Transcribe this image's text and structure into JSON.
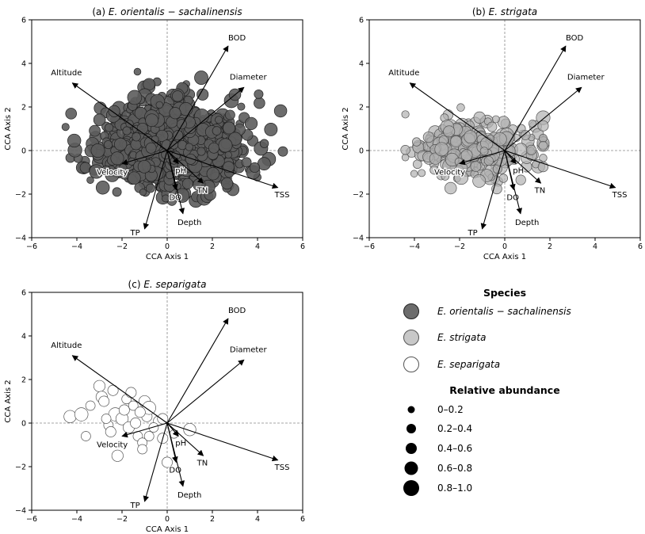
{
  "chart_data": [
    {
      "type": "scatter",
      "title_prefix": "(a) ",
      "title_species": "E. orientalis − sachalinensis",
      "xlabel": "CCA Axis 1",
      "ylabel": "CCA Axis 2",
      "xlim": [
        -6,
        6
      ],
      "ylim": [
        -4,
        6
      ],
      "xticks": [
        -6,
        -4,
        -2,
        0,
        2,
        4,
        6
      ],
      "yticks": [
        -4,
        -2,
        0,
        2,
        4,
        6
      ],
      "series_ref": 0,
      "point_count": 1100,
      "spread_x": [
        -4.5,
        5.5
      ],
      "spread_y": [
        -2.6,
        3.8
      ]
    },
    {
      "type": "scatter",
      "title_prefix": "(b) ",
      "title_species": "E. strigata",
      "xlabel": "CCA Axis 1",
      "ylabel": "CCA Axis 2",
      "xlim": [
        -6,
        6
      ],
      "ylim": [
        -4,
        6
      ],
      "xticks": [
        -6,
        -4,
        -2,
        0,
        2,
        4,
        6
      ],
      "yticks": [
        -4,
        -2,
        0,
        2,
        4,
        6
      ],
      "series_ref": 1,
      "point_count": 300,
      "spread_x": [
        -4.4,
        1.7
      ],
      "spread_y": [
        -2.1,
        2.3
      ]
    },
    {
      "type": "scatter",
      "title_prefix": "(c) ",
      "title_species": "E. separigata",
      "xlabel": "CCA Axis 1",
      "ylabel": "CCA Axis 2",
      "xlim": [
        -6,
        6
      ],
      "ylim": [
        -4,
        6
      ],
      "xticks": [
        -6,
        -4,
        -2,
        0,
        2,
        4,
        6
      ],
      "yticks": [
        -4,
        -2,
        0,
        2,
        4,
        6
      ],
      "series_ref": 2,
      "points": [
        [
          -4.3,
          0.3,
          0.8
        ],
        [
          -3.8,
          0.4,
          0.9
        ],
        [
          -3.6,
          -0.6,
          0.5
        ],
        [
          -3.4,
          0.8,
          0.5
        ],
        [
          -3.0,
          1.7,
          0.7
        ],
        [
          -2.9,
          1.2,
          0.7
        ],
        [
          -2.8,
          1.0,
          0.6
        ],
        [
          -2.6,
          -0.1,
          0.5
        ],
        [
          -2.4,
          1.5,
          0.6
        ],
        [
          -2.3,
          0.4,
          0.9
        ],
        [
          -2.2,
          -1.5,
          0.7
        ],
        [
          -2.0,
          0.2,
          0.8
        ],
        [
          -1.9,
          0.6,
          0.6
        ],
        [
          -1.8,
          1.1,
          0.5
        ],
        [
          -1.7,
          -0.2,
          0.7
        ],
        [
          -1.6,
          1.4,
          0.6
        ],
        [
          -1.5,
          0.8,
          0.5
        ],
        [
          -1.4,
          0.0,
          0.6
        ],
        [
          -1.3,
          -0.6,
          0.5
        ],
        [
          -1.1,
          -0.9,
          0.5
        ],
        [
          -1.0,
          1.0,
          0.7
        ],
        [
          -0.9,
          0.3,
          0.6
        ],
        [
          -0.8,
          0.7,
          0.9
        ],
        [
          -0.8,
          -0.6,
          0.5
        ],
        [
          -1.1,
          -1.2,
          0.5
        ],
        [
          -0.4,
          0.1,
          0.5
        ],
        [
          -0.2,
          0.2,
          0.6
        ],
        [
          -0.2,
          -0.7,
          0.6
        ],
        [
          0.0,
          -1.8,
          0.6
        ],
        [
          1.0,
          -0.3,
          0.8
        ],
        [
          -2.5,
          -0.4,
          0.6
        ],
        [
          -1.2,
          0.5,
          0.6
        ],
        [
          -0.6,
          -0.2,
          0.5
        ],
        [
          0.3,
          -0.5,
          0.4
        ],
        [
          -2.7,
          0.2,
          0.5
        ]
      ]
    }
  ],
  "vectors": [
    {
      "label": "BOD",
      "x": 2.7,
      "y": 4.8
    },
    {
      "label": "Diameter",
      "x": 3.4,
      "y": 2.9
    },
    {
      "label": "Altitude",
      "x": -4.2,
      "y": 3.1
    },
    {
      "label": "Velocity",
      "x": -2.0,
      "y": -0.6
    },
    {
      "label": "pH",
      "x": 0.5,
      "y": -0.6
    },
    {
      "label": "TN",
      "x": 1.6,
      "y": -1.5
    },
    {
      "label": "DO",
      "x": 0.4,
      "y": -1.8
    },
    {
      "label": "Depth",
      "x": 0.7,
      "y": -2.9
    },
    {
      "label": "TSS",
      "x": 4.9,
      "y": -1.7
    },
    {
      "label": "TP",
      "x": -1.0,
      "y": -3.6
    }
  ],
  "legend": {
    "species_title": "Species",
    "species": [
      {
        "label": "E. orientalis − sachalinensis",
        "fill": "#5c5c5c",
        "stroke": "#222222",
        "alpha": 0.9
      },
      {
        "label": "E. strigata",
        "fill": "#b0b0b0",
        "stroke": "#555555",
        "alpha": 0.7
      },
      {
        "label": "E. separigata",
        "fill": "#ffffff",
        "stroke": "#555555",
        "alpha": 1.0
      }
    ],
    "abundance_title": "Relative abundance",
    "abundance": [
      "0–0.2",
      "0.2–0.4",
      "0.4–0.6",
      "0.6–0.8",
      "0.8–1.0"
    ]
  }
}
